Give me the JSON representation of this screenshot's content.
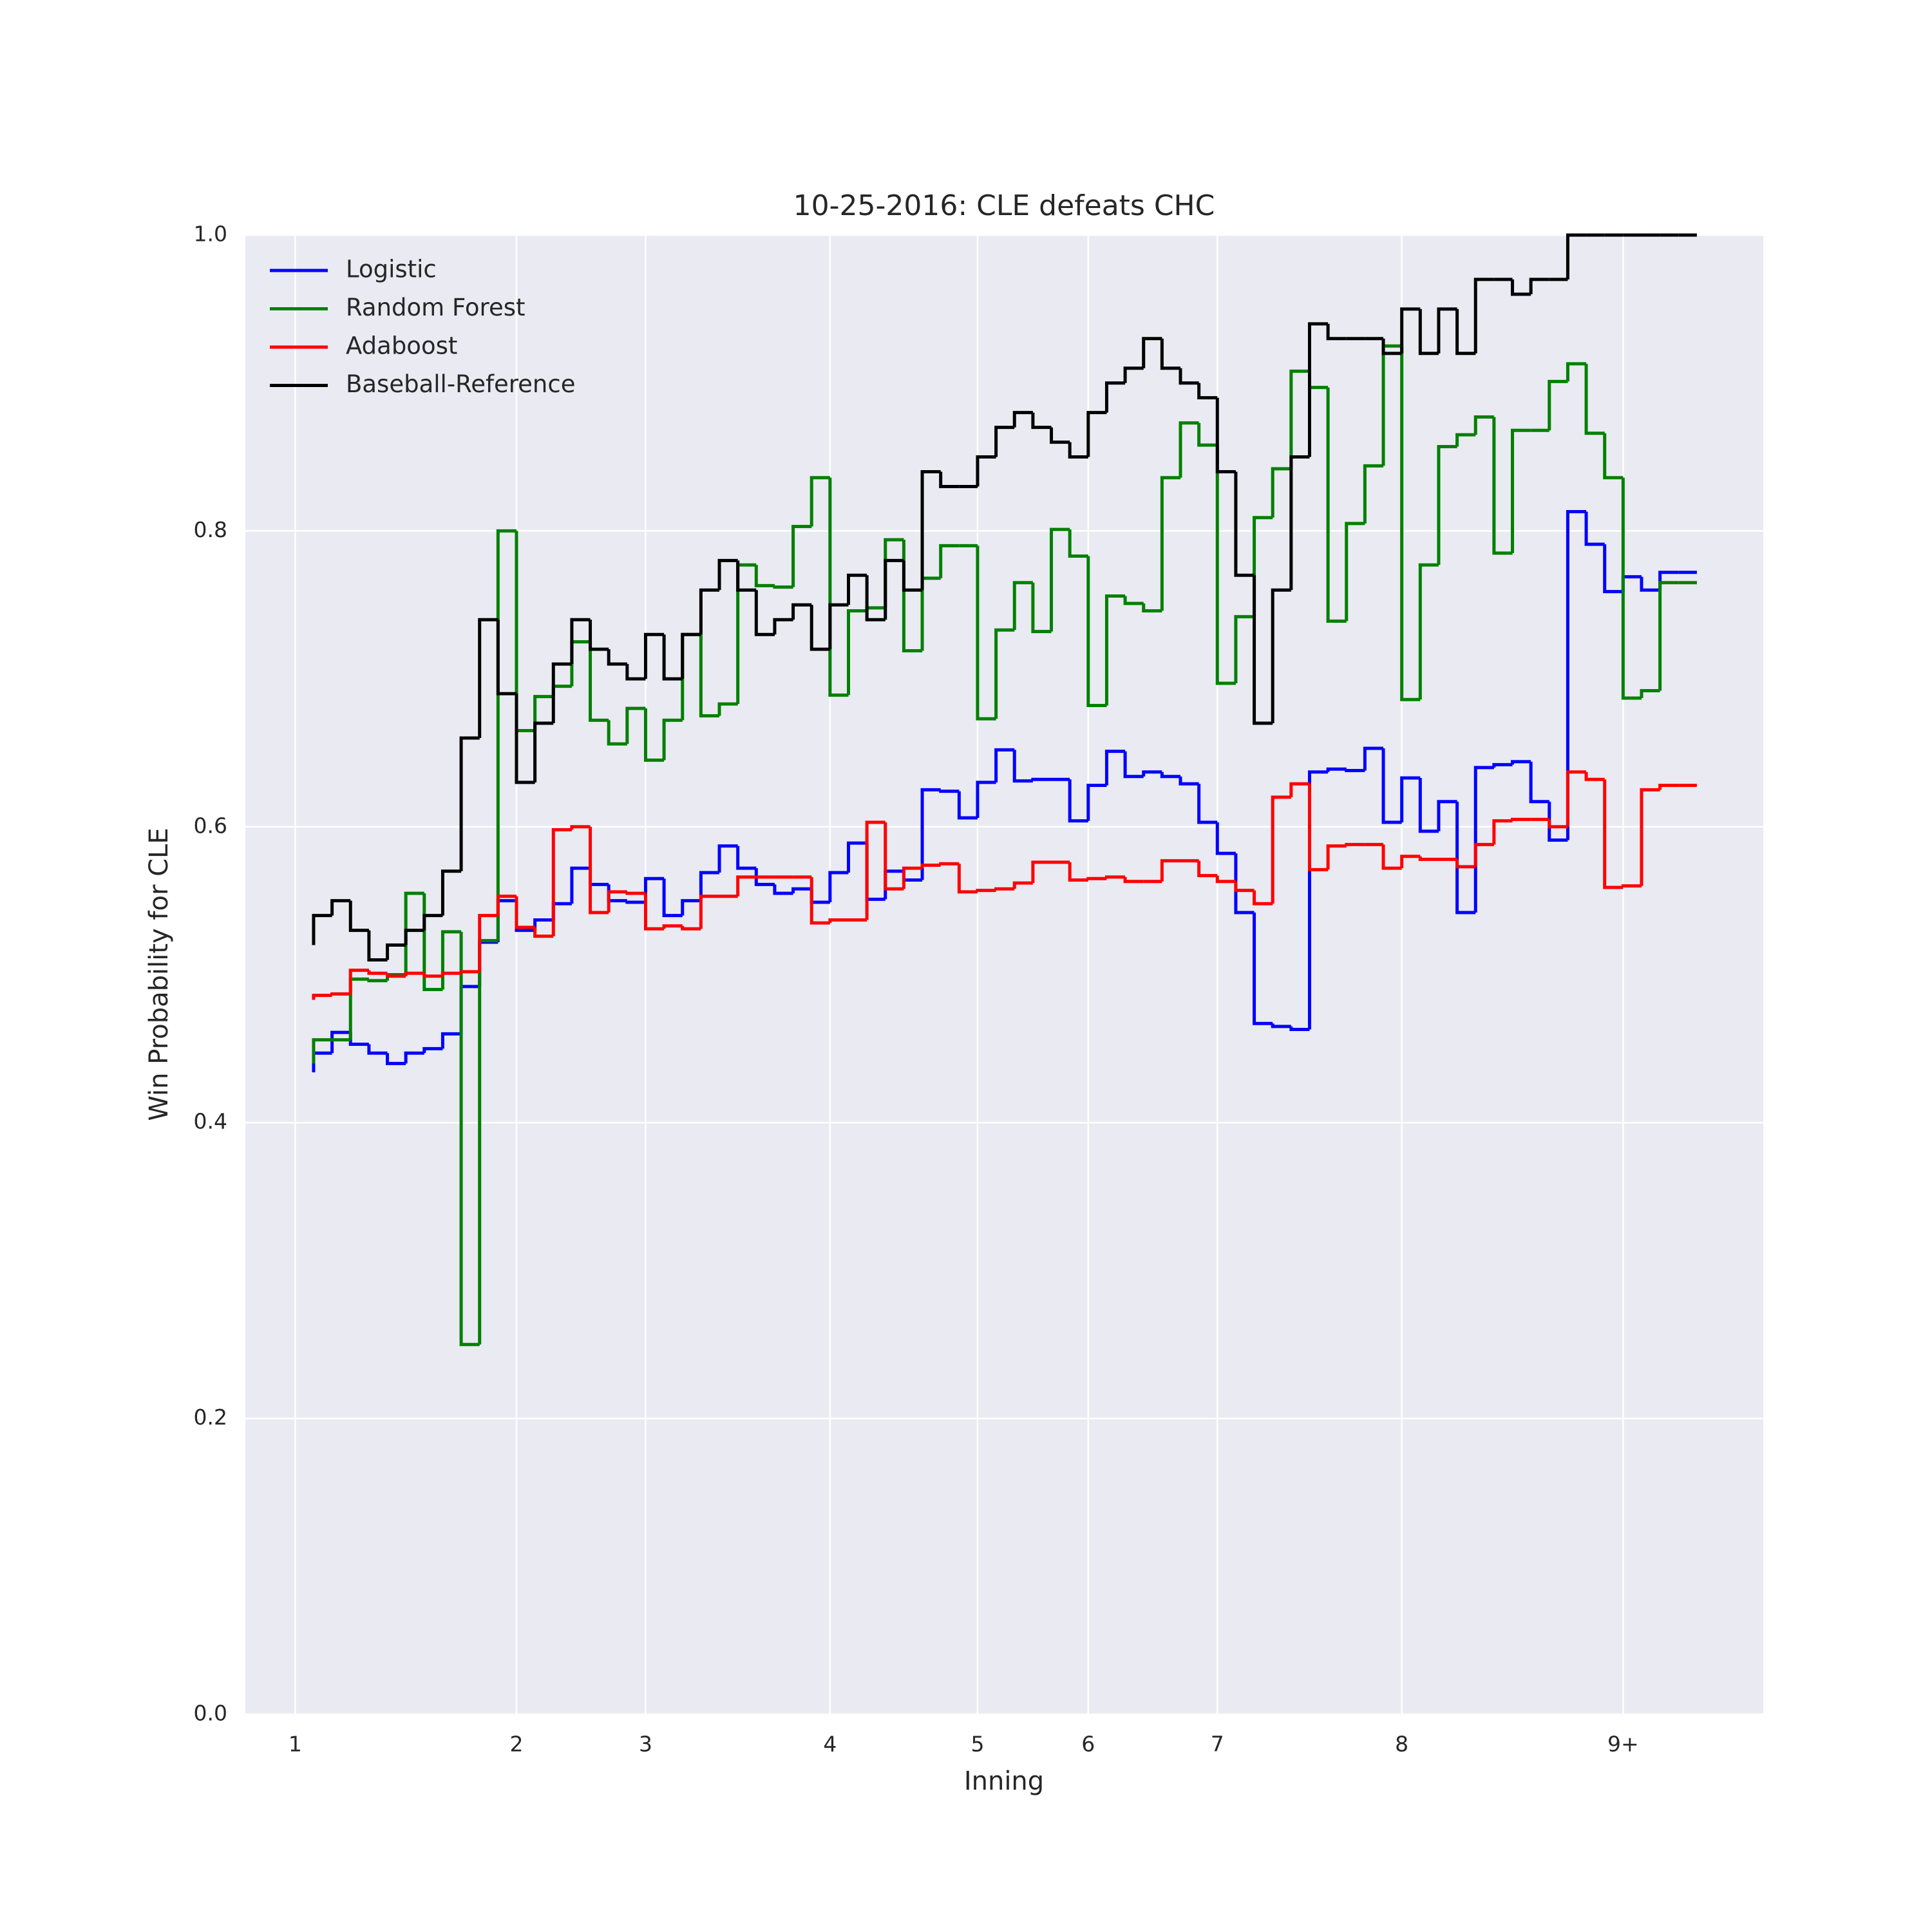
{
  "chart_data": {
    "type": "step",
    "drawstyle": "steps-pre",
    "title": "10-25-2016: CLE defeats CHC",
    "xlabel": "Inning",
    "ylabel": "Win Probability for CLE",
    "x": [
      0,
      1,
      2,
      3,
      4,
      5,
      6,
      7,
      8,
      9,
      10,
      11,
      12,
      13,
      14,
      15,
      16,
      17,
      18,
      19,
      20,
      21,
      22,
      23,
      24,
      25,
      26,
      27,
      28,
      29,
      30,
      31,
      32,
      33,
      34,
      35,
      36,
      37,
      38,
      39,
      40,
      41,
      42,
      43,
      44,
      45,
      46,
      47,
      48,
      49,
      50,
      51,
      52,
      53,
      54,
      55,
      56,
      57,
      58,
      59,
      60,
      61,
      62,
      63,
      64,
      65,
      66,
      67,
      68,
      69,
      70,
      71,
      72,
      73,
      74,
      75
    ],
    "xlim": [
      -3.7,
      78.6
    ],
    "xticks": [
      {
        "value": -1,
        "label": "1"
      },
      {
        "value": 11,
        "label": "2"
      },
      {
        "value": 18,
        "label": "3"
      },
      {
        "value": 28,
        "label": "4"
      },
      {
        "value": 36,
        "label": "5"
      },
      {
        "value": 42,
        "label": "6"
      },
      {
        "value": 49,
        "label": "7"
      },
      {
        "value": 59,
        "label": "8"
      },
      {
        "value": 71,
        "label": "9+"
      }
    ],
    "ylim": [
      0,
      1
    ],
    "yticks": [
      {
        "value": 0,
        "label": "0.0"
      },
      0.2,
      0.4,
      0.6,
      0.8,
      {
        "value": 1,
        "label": "1.0"
      }
    ],
    "grid": true,
    "legend": "upper left",
    "series": [
      {
        "name": "Logistic",
        "color": "#0000ff",
        "values": [
          0.434,
          0.447,
          0.461,
          0.453,
          0.447,
          0.44,
          0.447,
          0.45,
          0.46,
          0.492,
          0.522,
          0.55,
          0.53,
          0.537,
          0.548,
          0.572,
          0.561,
          0.55,
          0.549,
          0.565,
          0.54,
          0.55,
          0.569,
          0.587,
          0.572,
          0.561,
          0.555,
          0.558,
          0.549,
          0.569,
          0.589,
          0.551,
          0.57,
          0.564,
          0.625,
          0.624,
          0.606,
          0.63,
          0.652,
          0.631,
          0.632,
          0.632,
          0.604,
          0.628,
          0.651,
          0.634,
          0.637,
          0.634,
          0.629,
          0.603,
          0.582,
          0.542,
          0.467,
          0.465,
          0.463,
          0.637,
          0.639,
          0.638,
          0.653,
          0.603,
          0.633,
          0.597,
          0.617,
          0.542,
          0.64,
          0.642,
          0.644,
          0.617,
          0.591,
          0.813,
          0.791,
          0.759,
          0.769,
          0.76,
          0.772,
          0.772
        ]
      },
      {
        "name": "Random Forest",
        "color": "#008000",
        "values": [
          0.44,
          0.456,
          0.456,
          0.497,
          0.496,
          0.5,
          0.555,
          0.49,
          0.529,
          0.25,
          0.523,
          0.8,
          0.665,
          0.688,
          0.695,
          0.725,
          0.672,
          0.656,
          0.68,
          0.645,
          0.672,
          0.73,
          0.675,
          0.683,
          0.777,
          0.763,
          0.762,
          0.803,
          0.836,
          0.689,
          0.746,
          0.748,
          0.794,
          0.719,
          0.768,
          0.79,
          0.79,
          0.673,
          0.733,
          0.765,
          0.732,
          0.801,
          0.783,
          0.682,
          0.756,
          0.751,
          0.746,
          0.836,
          0.873,
          0.858,
          0.697,
          0.742,
          0.809,
          0.842,
          0.908,
          0.897,
          0.739,
          0.805,
          0.844,
          0.925,
          0.686,
          0.777,
          0.857,
          0.865,
          0.877,
          0.785,
          0.868,
          0.868,
          0.901,
          0.913,
          0.866,
          0.836,
          0.687,
          0.692,
          0.765,
          0.765
        ]
      },
      {
        "name": "Adaboost",
        "color": "#ff0000",
        "values": [
          0.483,
          0.486,
          0.487,
          0.503,
          0.501,
          0.499,
          0.501,
          0.499,
          0.501,
          0.502,
          0.54,
          0.553,
          0.532,
          0.526,
          0.598,
          0.6,
          0.542,
          0.556,
          0.555,
          0.531,
          0.533,
          0.531,
          0.553,
          0.553,
          0.566,
          0.566,
          0.566,
          0.566,
          0.535,
          0.537,
          0.537,
          0.603,
          0.558,
          0.572,
          0.574,
          0.575,
          0.556,
          0.557,
          0.558,
          0.562,
          0.576,
          0.576,
          0.564,
          0.565,
          0.566,
          0.563,
          0.563,
          0.577,
          0.577,
          0.567,
          0.563,
          0.557,
          0.548,
          0.62,
          0.629,
          0.571,
          0.587,
          0.588,
          0.588,
          0.572,
          0.58,
          0.578,
          0.578,
          0.573,
          0.588,
          0.604,
          0.605,
          0.605,
          0.6,
          0.637,
          0.632,
          0.559,
          0.56,
          0.625,
          0.628,
          0.628
        ]
      },
      {
        "name": "Baseball-Reference",
        "color": "#000000",
        "values": [
          0.52,
          0.54,
          0.55,
          0.53,
          0.51,
          0.52,
          0.53,
          0.54,
          0.57,
          0.66,
          0.74,
          0.69,
          0.63,
          0.67,
          0.71,
          0.74,
          0.72,
          0.71,
          0.7,
          0.73,
          0.7,
          0.73,
          0.76,
          0.78,
          0.76,
          0.73,
          0.74,
          0.75,
          0.72,
          0.75,
          0.77,
          0.74,
          0.78,
          0.76,
          0.84,
          0.83,
          0.83,
          0.85,
          0.87,
          0.88,
          0.87,
          0.86,
          0.85,
          0.88,
          0.9,
          0.91,
          0.93,
          0.91,
          0.9,
          0.89,
          0.84,
          0.77,
          0.67,
          0.76,
          0.85,
          0.94,
          0.93,
          0.93,
          0.93,
          0.92,
          0.95,
          0.92,
          0.95,
          0.92,
          0.97,
          0.97,
          0.96,
          0.97,
          0.97,
          1,
          1,
          1,
          1,
          1,
          1,
          1
        ]
      }
    ]
  }
}
